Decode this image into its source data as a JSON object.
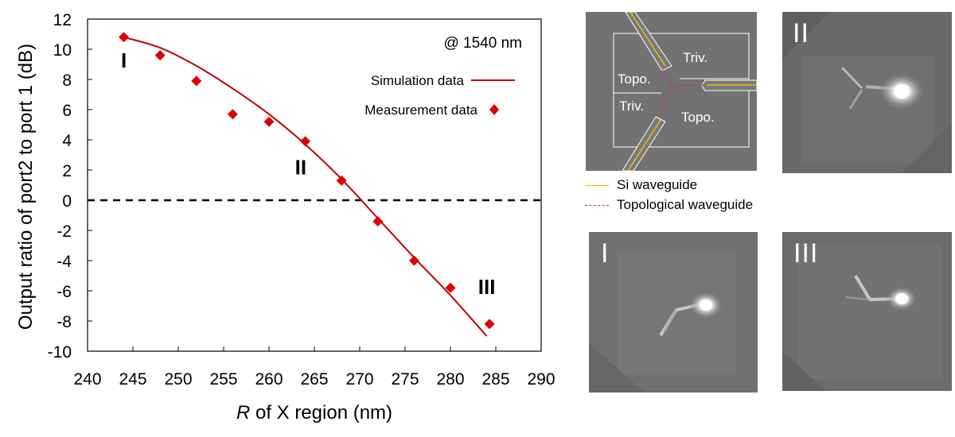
{
  "chart_data": {
    "type": "scatter",
    "xlabel_italic": "R",
    "xlabel_rest": " of X region (nm)",
    "ylabel": "Output ratio of port2 to port 1 (dB)",
    "xlim": [
      240,
      290
    ],
    "ylim": [
      -10,
      12
    ],
    "x_ticks": [
      240,
      245,
      250,
      255,
      260,
      265,
      270,
      275,
      280,
      285,
      290
    ],
    "y_ticks": [
      -10,
      -8,
      -6,
      -4,
      -2,
      0,
      2,
      4,
      6,
      8,
      10,
      12
    ],
    "annotation": "@ 1540 nm",
    "reference_line_y": 0,
    "series": [
      {
        "name": "Simulation data",
        "kind": "line",
        "color": "#c00000",
        "x": [
          244,
          248,
          252,
          256,
          260,
          264,
          268,
          272,
          276,
          280,
          284
        ],
        "y": [
          10.8,
          10.1,
          8.9,
          7.4,
          5.7,
          3.7,
          1.4,
          -1.2,
          -3.8,
          -6.3,
          -9.0
        ]
      },
      {
        "name": "Measurement data",
        "kind": "marker",
        "color": "#e00000",
        "x": [
          244,
          248,
          252,
          256,
          260,
          264,
          268,
          272,
          276,
          280,
          284.3
        ],
        "y": [
          10.8,
          9.6,
          7.9,
          5.7,
          5.2,
          3.9,
          1.3,
          -1.4,
          -4.0,
          -5.8,
          -8.2
        ]
      }
    ],
    "region_labels": [
      {
        "text": "I",
        "x": 244,
        "y": 8.8
      },
      {
        "text": "II",
        "x": 263.5,
        "y": 1.7
      },
      {
        "text": "III",
        "x": 284,
        "y": -6.2
      }
    ]
  },
  "images": {
    "panel_labels": {
      "ii": "II",
      "i": "I",
      "iii": "III"
    },
    "schematic_labels": {
      "triv_top": "Triv.",
      "topo_left": "Topo.",
      "triv_bottom": "Triv.",
      "topo_bottom": "Topo."
    },
    "legend": {
      "si_waveguide": "Si waveguide",
      "topo_waveguide": "Topological waveguide",
      "si_color": "#e8c000",
      "topo_color": "#c0308a"
    }
  }
}
